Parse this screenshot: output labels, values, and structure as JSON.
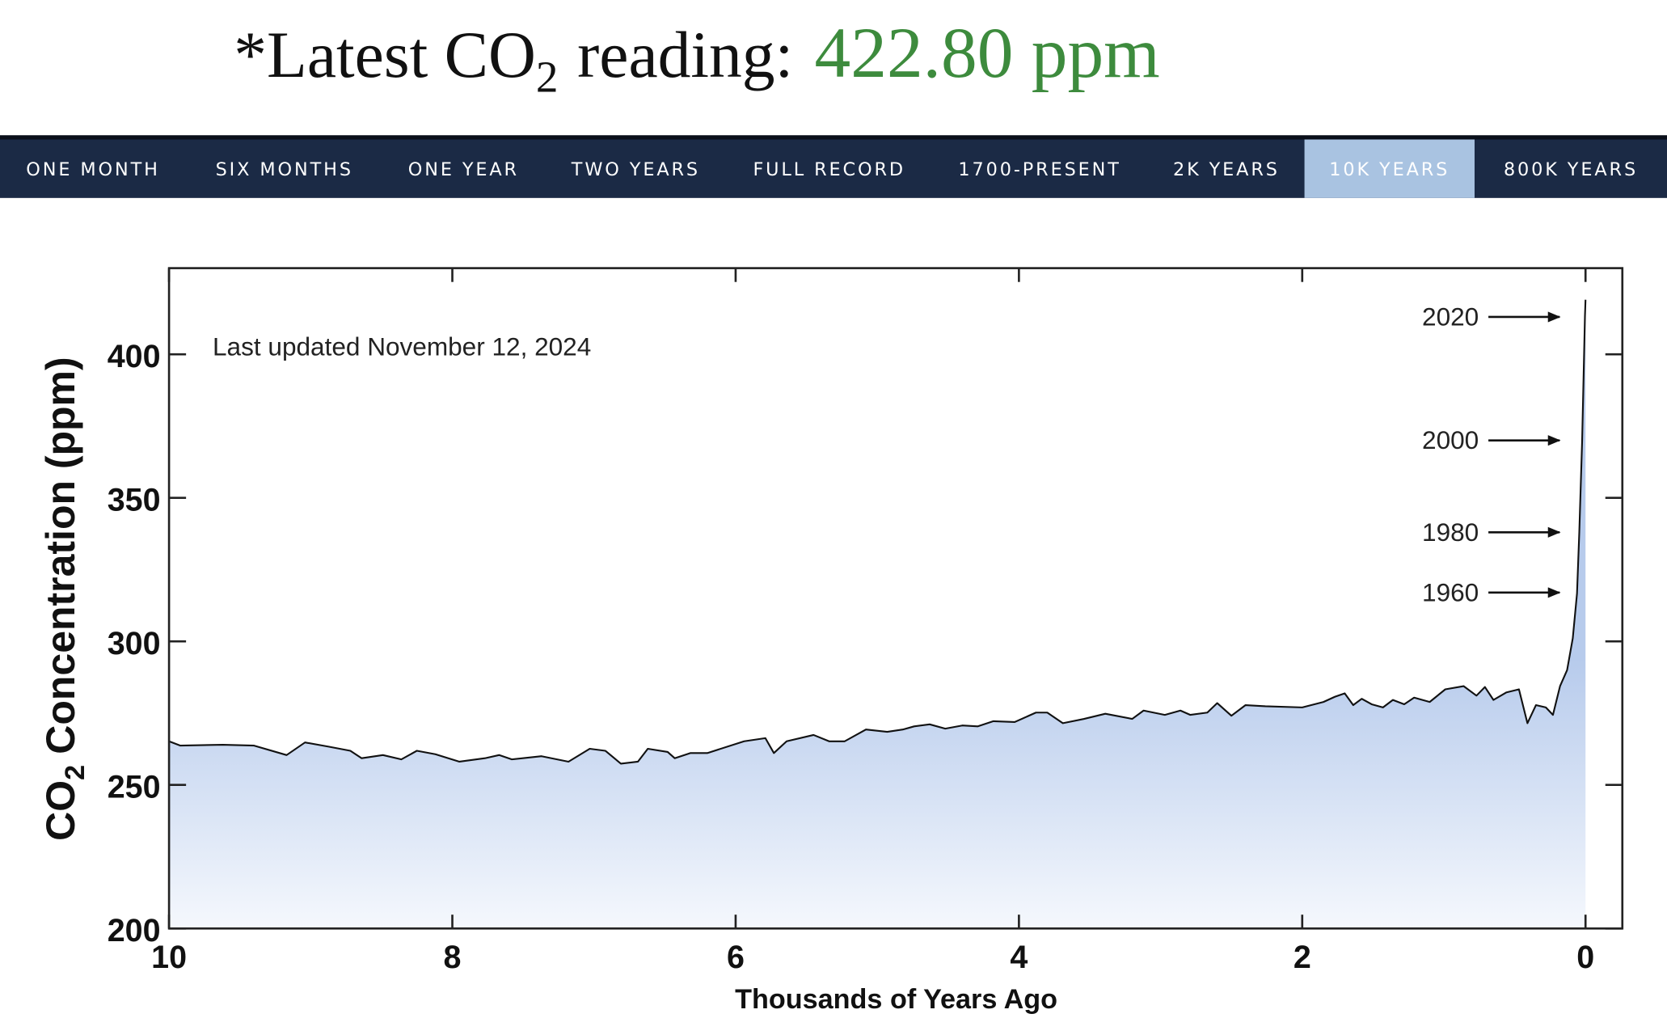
{
  "header": {
    "prefix": "*Latest CO",
    "subscript": "2",
    "suffix": "reading:",
    "value": "422.80 ppm"
  },
  "nav": {
    "items": [
      "ONE MONTH",
      "SIX MONTHS",
      "ONE YEAR",
      "TWO YEARS",
      "FULL RECORD",
      "1700-PRESENT",
      "2K YEARS",
      "10K YEARS",
      "800K YEARS"
    ],
    "active": 7
  },
  "chart_data": {
    "type": "area",
    "y_label": {
      "prefix": "CO",
      "subscript": "2",
      "suffix": "Concentration (ppm)"
    },
    "x_label": "Thousands of Years Ago",
    "annotation": "Last updated November 12, 2024",
    "markers": [
      {
        "text": "2020",
        "y": 413
      },
      {
        "text": "2000",
        "y": 370
      },
      {
        "text": "1980",
        "y": 338
      },
      {
        "text": "1960",
        "y": 317
      }
    ],
    "color": "#111111",
    "fill": "#b7cbec",
    "xlim": [
      10,
      -0.26
    ],
    "ylim": [
      200,
      430
    ],
    "xticks": [
      10,
      8,
      6,
      4,
      2,
      0
    ],
    "yticks": [
      200,
      250,
      300,
      350,
      400
    ],
    "x": [
      10,
      9.92,
      9.62,
      9.4,
      9.17,
      9.04,
      8.87,
      8.72,
      8.64,
      8.49,
      8.36,
      8.25,
      8.12,
      7.95,
      7.77,
      7.67,
      7.58,
      7.37,
      7.18,
      7.03,
      6.92,
      6.81,
      6.69,
      6.62,
      6.48,
      6.43,
      6.32,
      6.2,
      5.94,
      5.79,
      5.73,
      5.64,
      5.45,
      5.34,
      5.23,
      5.08,
      4.93,
      4.82,
      4.74,
      4.63,
      4.52,
      4.4,
      4.29,
      4.18,
      4.03,
      3.88,
      3.8,
      3.69,
      3.54,
      3.39,
      3.2,
      3.12,
      2.97,
      2.86,
      2.79,
      2.67,
      2.6,
      2.5,
      2.4,
      2.26,
      2.0,
      1.85,
      1.77,
      1.7,
      1.64,
      1.58,
      1.51,
      1.43,
      1.36,
      1.28,
      1.21,
      1.1,
      0.99,
      0.86,
      0.77,
      0.71,
      0.65,
      0.56,
      0.47,
      0.41,
      0.35,
      0.28,
      0.23,
      0.18,
      0.13,
      0.09,
      0.06,
      0.044,
      0.024,
      0.004,
      0
    ],
    "values": [
      265.2,
      263.7,
      264,
      263.7,
      260.4,
      264.8,
      263.3,
      261.9,
      259.3,
      260.4,
      258.9,
      261.9,
      260.7,
      258.1,
      259.3,
      260.4,
      258.9,
      260,
      258.1,
      262.6,
      261.9,
      257.4,
      258.1,
      262.6,
      261.5,
      259.3,
      261.1,
      261.1,
      265.2,
      266.3,
      261.1,
      265.2,
      267.4,
      265.2,
      265.2,
      269.3,
      268.5,
      269.3,
      270.4,
      271.1,
      269.6,
      270.7,
      270.4,
      272.2,
      271.9,
      275.2,
      275.2,
      271.5,
      273,
      274.8,
      273,
      275.9,
      274.4,
      275.9,
      274.4,
      275.2,
      278.5,
      274.1,
      277.8,
      277.4,
      277,
      278.9,
      280.7,
      281.9,
      277.8,
      280,
      278.1,
      277,
      279.6,
      278.1,
      280.4,
      278.9,
      283.3,
      284.4,
      281.1,
      284.1,
      279.6,
      282.2,
      283.3,
      271.5,
      277.8,
      277,
      274.4,
      284.4,
      290,
      301.1,
      316.7,
      338,
      369.6,
      413.3,
      419
    ]
  }
}
